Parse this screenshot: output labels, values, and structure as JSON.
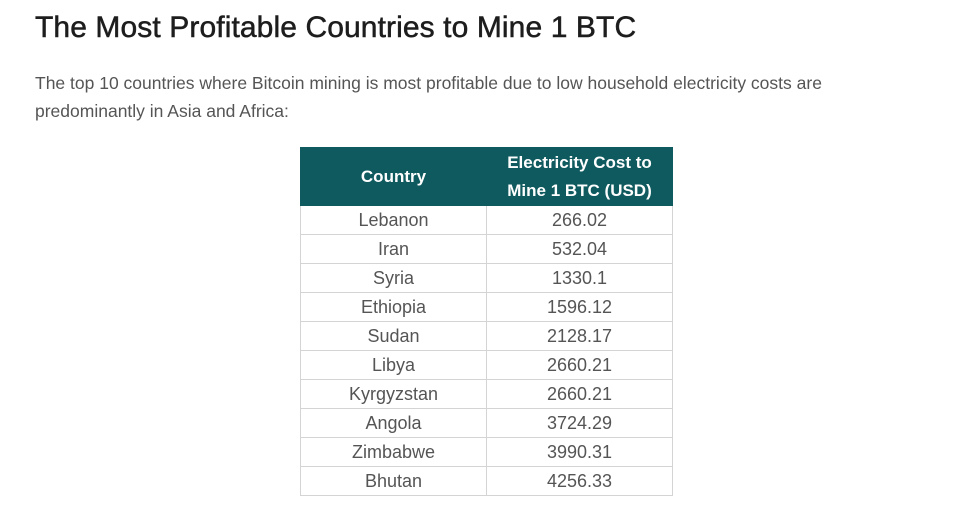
{
  "title": "The Most Profitable Countries to Mine 1 BTC",
  "intro": "The top 10 countries where Bitcoin mining is most profitable due to low household electricity costs are predominantly in Asia and Africa:",
  "table": {
    "headers": {
      "country": "Country",
      "cost_line1": "Electricity Cost to",
      "cost_line2": "Mine 1 BTC (USD)"
    },
    "rows": [
      {
        "country": "Lebanon",
        "cost": "266.02"
      },
      {
        "country": "Iran",
        "cost": "532.04"
      },
      {
        "country": "Syria",
        "cost": "1330.1"
      },
      {
        "country": "Ethiopia",
        "cost": "1596.12"
      },
      {
        "country": "Sudan",
        "cost": "2128.17"
      },
      {
        "country": "Libya",
        "cost": "2660.21"
      },
      {
        "country": "Kyrgyzstan",
        "cost": "2660.21"
      },
      {
        "country": "Angola",
        "cost": "3724.29"
      },
      {
        "country": "Zimbabwe",
        "cost": "3990.31"
      },
      {
        "country": "Bhutan",
        "cost": "4256.33"
      }
    ]
  }
}
